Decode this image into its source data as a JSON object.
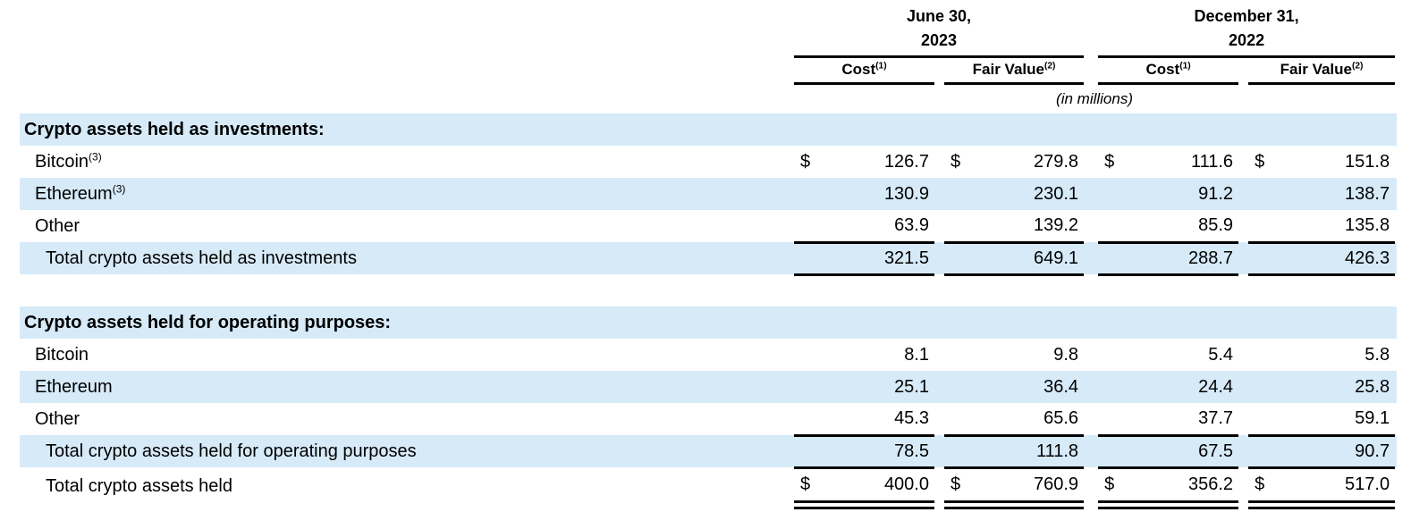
{
  "table": {
    "currency_symbol": "$",
    "units_note": "(in millions)",
    "column_groups": [
      {
        "date_line1": "June 30,",
        "date_line2": "2023"
      },
      {
        "date_line1": "December 31,",
        "date_line2": "2022"
      }
    ],
    "sub_columns": [
      {
        "label": "Cost",
        "sup": "(1)"
      },
      {
        "label": "Fair Value",
        "sup": "(2)"
      }
    ],
    "sections": [
      {
        "title": "Crypto assets held as investments:",
        "rows": [
          {
            "label": "Bitcoin",
            "sup": "(3)",
            "dollar": true,
            "shaded": false,
            "values": [
              "126.7",
              "279.8",
              "111.6",
              "151.8"
            ]
          },
          {
            "label": "Ethereum",
            "sup": "(3)",
            "dollar": false,
            "shaded": true,
            "values": [
              "130.9",
              "230.1",
              "91.2",
              "138.7"
            ]
          },
          {
            "label": "Other",
            "dollar": false,
            "shaded": false,
            "values": [
              "63.9",
              "139.2",
              "85.9",
              "135.8"
            ],
            "rule_below": true
          }
        ],
        "total_row": {
          "label": "Total crypto assets held as investments",
          "dollar": false,
          "shaded": true,
          "values": [
            "321.5",
            "649.1",
            "288.7",
            "426.3"
          ],
          "rule_below": true
        }
      },
      {
        "title": "Crypto assets held for operating purposes:",
        "rows": [
          {
            "label": "Bitcoin",
            "dollar": false,
            "shaded": false,
            "values": [
              "8.1",
              "9.8",
              "5.4",
              "5.8"
            ]
          },
          {
            "label": "Ethereum",
            "dollar": false,
            "shaded": true,
            "values": [
              "25.1",
              "36.4",
              "24.4",
              "25.8"
            ]
          },
          {
            "label": "Other",
            "dollar": false,
            "shaded": false,
            "values": [
              "45.3",
              "65.6",
              "37.7",
              "59.1"
            ],
            "rule_below": true
          }
        ],
        "total_row": {
          "label": "Total crypto assets held for operating purposes",
          "dollar": false,
          "shaded": true,
          "values": [
            "78.5",
            "111.8",
            "67.5",
            "90.7"
          ],
          "rule_below": true
        }
      }
    ],
    "grand_total_row": {
      "label": "Total crypto assets held",
      "dollar": true,
      "shaded": false,
      "values": [
        "400.0",
        "760.9",
        "356.2",
        "517.0"
      ]
    }
  },
  "colors": {
    "shaded_row": "#d6eaf8",
    "rule": "#000000",
    "text": "#000000"
  }
}
